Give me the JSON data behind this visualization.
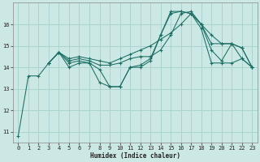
{
  "bg_color": "#cce8e4",
  "grid_color": "#aad4d0",
  "line_color": "#1a6e64",
  "xlabel": "Humidex (Indice chaleur)",
  "xlim": [
    -0.5,
    23.5
  ],
  "ylim": [
    10.5,
    17.0
  ],
  "yticks": [
    11,
    12,
    13,
    14,
    15,
    16
  ],
  "xticks": [
    0,
    1,
    2,
    3,
    4,
    5,
    6,
    7,
    8,
    9,
    10,
    11,
    12,
    13,
    14,
    15,
    16,
    17,
    18,
    19,
    20,
    21,
    22,
    23
  ],
  "series": [
    {
      "x": [
        0,
        1,
        2,
        3,
        4,
        5,
        6,
        7,
        8,
        9,
        10,
        11,
        12,
        13,
        14,
        15,
        16,
        17,
        18,
        19,
        20,
        21,
        22,
        23
      ],
      "y": [
        10.8,
        13.6,
        13.6,
        14.2,
        14.7,
        14.0,
        14.2,
        14.2,
        13.9,
        13.1,
        13.1,
        14.0,
        14.0,
        14.3,
        15.5,
        16.5,
        16.6,
        16.5,
        16.0,
        15.1,
        15.1,
        15.1,
        14.4,
        14.0
      ]
    },
    {
      "x": [
        3,
        4,
        5,
        6,
        7,
        8,
        9,
        10,
        11,
        12,
        13,
        14,
        15,
        16,
        17,
        18,
        19,
        20,
        21,
        22,
        23
      ],
      "y": [
        14.2,
        14.7,
        14.2,
        14.3,
        14.2,
        13.3,
        13.1,
        13.1,
        14.0,
        14.1,
        14.4,
        15.5,
        16.6,
        16.6,
        16.5,
        15.8,
        14.2,
        14.2,
        14.2,
        14.4,
        14.0
      ]
    },
    {
      "x": [
        3,
        4,
        5,
        6,
        7,
        8,
        9,
        10,
        11,
        12,
        13,
        14,
        15,
        16,
        17,
        18,
        19,
        20,
        21,
        22,
        23
      ],
      "y": [
        14.2,
        14.7,
        14.3,
        14.4,
        14.3,
        14.1,
        14.1,
        14.2,
        14.4,
        14.5,
        14.5,
        14.8,
        15.5,
        16.5,
        16.6,
        16.0,
        14.8,
        14.3,
        15.1,
        14.9,
        14.0
      ]
    },
    {
      "x": [
        3,
        4,
        5,
        6,
        7,
        8,
        9,
        10,
        11,
        12,
        13,
        14,
        15,
        16,
        17,
        18,
        19,
        20,
        21,
        22,
        23
      ],
      "y": [
        14.2,
        14.7,
        14.4,
        14.5,
        14.4,
        14.3,
        14.2,
        14.4,
        14.6,
        14.8,
        15.0,
        15.3,
        15.6,
        16.0,
        16.5,
        16.0,
        15.5,
        15.1,
        15.1,
        14.9,
        14.0
      ]
    }
  ]
}
